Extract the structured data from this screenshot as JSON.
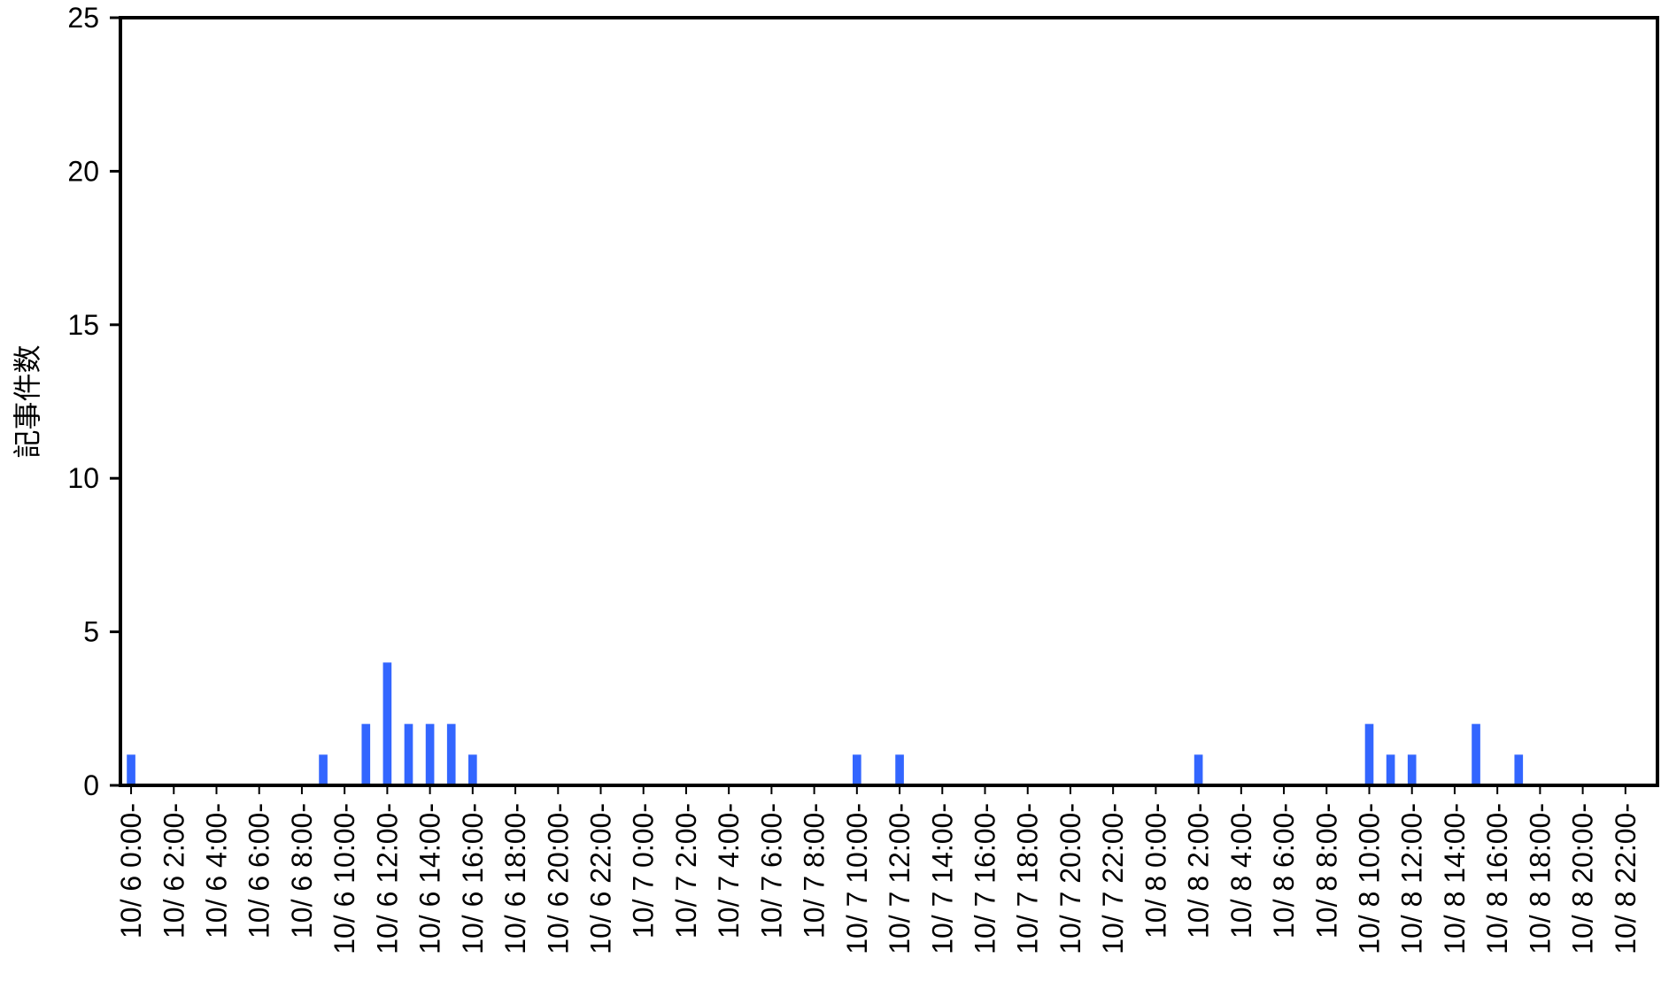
{
  "chart_data": {
    "type": "bar",
    "title": "",
    "xlabel": "",
    "ylabel": "記事件数",
    "ylim": [
      0,
      25
    ],
    "yticks": [
      0,
      5,
      10,
      15,
      20,
      25
    ],
    "grid": false,
    "legend": "none",
    "bar_color": "#3366ff",
    "categories": [
      "10/ 6 0:00-",
      "10/ 6 1:00-",
      "10/ 6 2:00-",
      "10/ 6 3:00-",
      "10/ 6 4:00-",
      "10/ 6 5:00-",
      "10/ 6 6:00-",
      "10/ 6 7:00-",
      "10/ 6 8:00-",
      "10/ 6 9:00-",
      "10/ 6 10:00-",
      "10/ 6 11:00-",
      "10/ 6 12:00-",
      "10/ 6 13:00-",
      "10/ 6 14:00-",
      "10/ 6 15:00-",
      "10/ 6 16:00-",
      "10/ 6 17:00-",
      "10/ 6 18:00-",
      "10/ 6 19:00-",
      "10/ 6 20:00-",
      "10/ 6 21:00-",
      "10/ 6 22:00-",
      "10/ 6 23:00-",
      "10/ 7 0:00-",
      "10/ 7 1:00-",
      "10/ 7 2:00-",
      "10/ 7 3:00-",
      "10/ 7 4:00-",
      "10/ 7 5:00-",
      "10/ 7 6:00-",
      "10/ 7 7:00-",
      "10/ 7 8:00-",
      "10/ 7 9:00-",
      "10/ 7 10:00-",
      "10/ 7 11:00-",
      "10/ 7 12:00-",
      "10/ 7 13:00-",
      "10/ 7 14:00-",
      "10/ 7 15:00-",
      "10/ 7 16:00-",
      "10/ 7 17:00-",
      "10/ 7 18:00-",
      "10/ 7 19:00-",
      "10/ 7 20:00-",
      "10/ 7 21:00-",
      "10/ 7 22:00-",
      "10/ 7 23:00-",
      "10/ 8 0:00-",
      "10/ 8 1:00-",
      "10/ 8 2:00-",
      "10/ 8 3:00-",
      "10/ 8 4:00-",
      "10/ 8 5:00-",
      "10/ 8 6:00-",
      "10/ 8 7:00-",
      "10/ 8 8:00-",
      "10/ 8 9:00-",
      "10/ 8 10:00-",
      "10/ 8 11:00-",
      "10/ 8 12:00-",
      "10/ 8 13:00-",
      "10/ 8 14:00-",
      "10/ 8 15:00-",
      "10/ 8 16:00-",
      "10/ 8 17:00-",
      "10/ 8 18:00-",
      "10/ 8 19:00-",
      "10/ 8 20:00-",
      "10/ 8 21:00-",
      "10/ 8 22:00-",
      "10/ 8 23:00-"
    ],
    "visible_tick_labels": [
      "10/ 6 0:00-",
      "10/ 6 2:00-",
      "10/ 6 4:00-",
      "10/ 6 6:00-",
      "10/ 6 8:00-",
      "10/ 6 10:00-",
      "10/ 6 12:00-",
      "10/ 6 14:00-",
      "10/ 6 16:00-",
      "10/ 6 18:00-",
      "10/ 6 20:00-",
      "10/ 6 22:00-",
      "10/ 7 0:00-",
      "10/ 7 2:00-",
      "10/ 7 4:00-",
      "10/ 7 6:00-",
      "10/ 7 8:00-",
      "10/ 7 10:00-",
      "10/ 7 12:00-",
      "10/ 7 14:00-",
      "10/ 7 16:00-",
      "10/ 7 18:00-",
      "10/ 7 20:00-",
      "10/ 7 22:00-",
      "10/ 8 0:00-",
      "10/ 8 2:00-",
      "10/ 8 4:00-",
      "10/ 8 6:00-",
      "10/ 8 8:00-",
      "10/ 8 10:00-",
      "10/ 8 12:00-",
      "10/ 8 14:00-",
      "10/ 8 16:00-",
      "10/ 8 18:00-",
      "10/ 8 20:00-",
      "10/ 8 22:00-"
    ],
    "values": [
      1,
      0,
      0,
      0,
      0,
      0,
      0,
      0,
      0,
      1,
      0,
      2,
      4,
      2,
      2,
      2,
      1,
      0,
      0,
      0,
      0,
      0,
      0,
      0,
      0,
      0,
      0,
      0,
      0,
      0,
      0,
      0,
      0,
      0,
      1,
      0,
      1,
      0,
      0,
      0,
      0,
      0,
      0,
      0,
      0,
      0,
      0,
      0,
      0,
      0,
      1,
      0,
      0,
      0,
      0,
      0,
      0,
      0,
      2,
      1,
      1,
      0,
      0,
      2,
      0,
      1,
      0,
      0,
      0,
      0,
      0,
      0
    ]
  }
}
